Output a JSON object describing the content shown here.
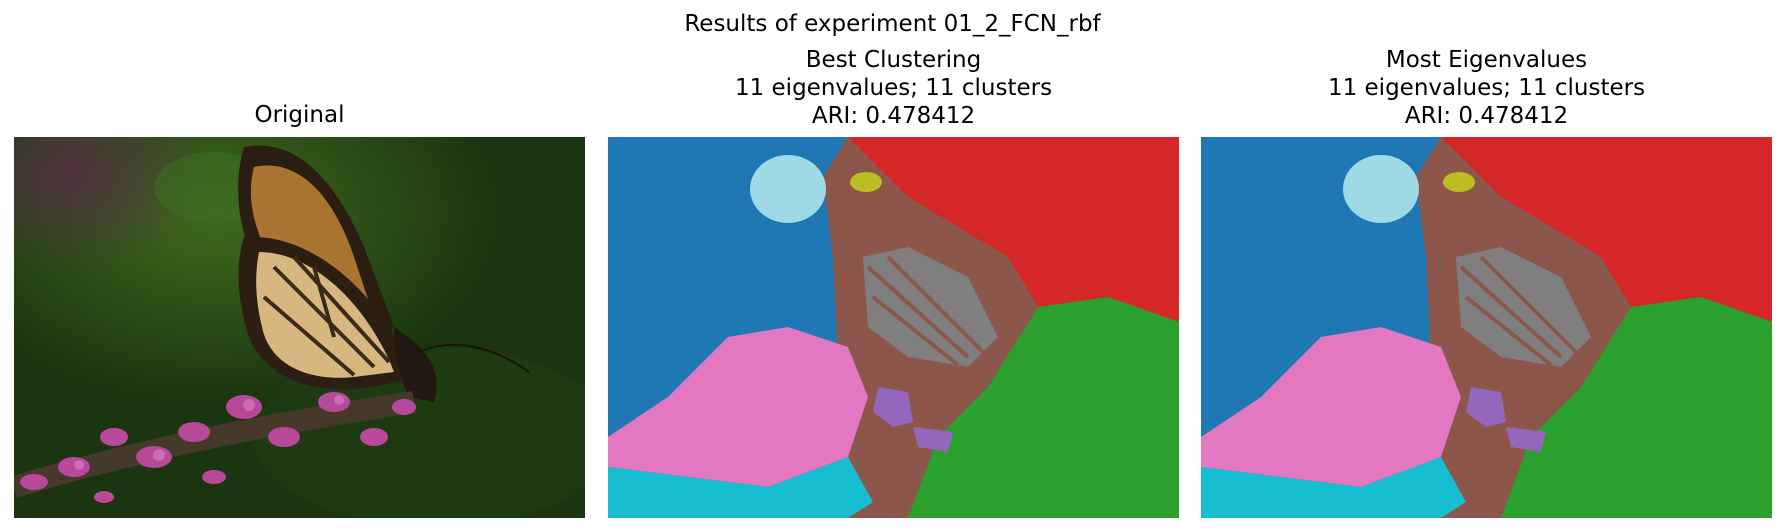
{
  "figure": {
    "suptitle": "Results of experiment 01_2_FCN_rbf"
  },
  "panels": [
    {
      "id": "original",
      "title_lines": [
        "Original"
      ]
    },
    {
      "id": "best",
      "title_lines": [
        "Best Clustering",
        "11 eigenvalues; 11 clusters",
        "ARI: 0.478412"
      ]
    },
    {
      "id": "most",
      "title_lines": [
        "Most Eigenvalues",
        "11 eigenvalues; 11 clusters",
        "ARI: 0.478412"
      ]
    }
  ],
  "cluster_palette": {
    "blue": "#1f77b4",
    "red": "#d62728",
    "green": "#2ca02c",
    "brown": "#8c564b",
    "pink": "#e377c2",
    "gray": "#7f7f7f",
    "cyan": "#17becf",
    "purple": "#9467bd",
    "olive": "#bcbd22",
    "lightblue": "#9edae5"
  }
}
